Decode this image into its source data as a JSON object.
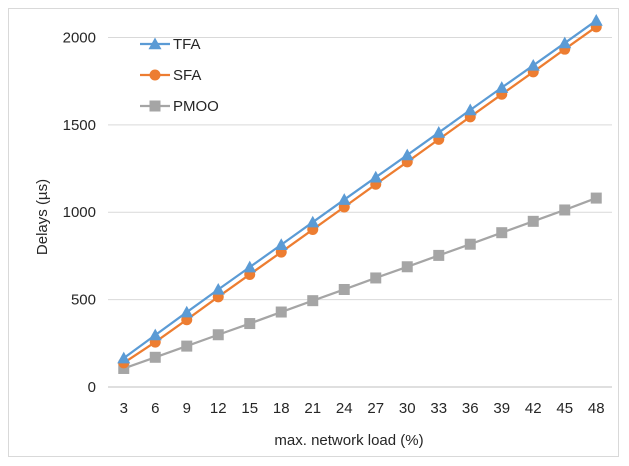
{
  "chart_data": {
    "type": "line",
    "title": "",
    "xlabel": "max.  network load (%)",
    "ylabel": "Delays (µs)",
    "categories": [
      "3",
      "6",
      "9",
      "12",
      "15",
      "18",
      "21",
      "24",
      "27",
      "30",
      "33",
      "36",
      "39",
      "42",
      "45",
      "48"
    ],
    "ylim": [
      0,
      2100
    ],
    "yticks": [
      0,
      500,
      1000,
      1500,
      2000
    ],
    "ytick_labels": [
      "0",
      "500",
      "1000",
      "1500",
      "2000"
    ],
    "grid": "horizontal",
    "legend_position": "top-left",
    "series": [
      {
        "name": "TFA",
        "color": "#5b9bd5",
        "marker": "triangle",
        "values": [
          165,
          297,
          428,
          558,
          686,
          814,
          943,
          1072,
          1200,
          1327,
          1456,
          1585,
          1713,
          1840,
          1968,
          2097
        ]
      },
      {
        "name": "SFA",
        "color": "#ed7d31",
        "marker": "circle",
        "values": [
          138,
          257,
          385,
          516,
          644,
          772,
          901,
          1030,
          1160,
          1288,
          1417,
          1546,
          1675,
          1803,
          1933,
          2061
        ]
      },
      {
        "name": "PMOO",
        "color": "#a5a5a5",
        "marker": "square",
        "values": [
          106,
          170,
          234,
          299,
          363,
          429,
          494,
          558,
          624,
          688,
          753,
          817,
          883,
          948,
          1013,
          1081
        ]
      }
    ]
  }
}
